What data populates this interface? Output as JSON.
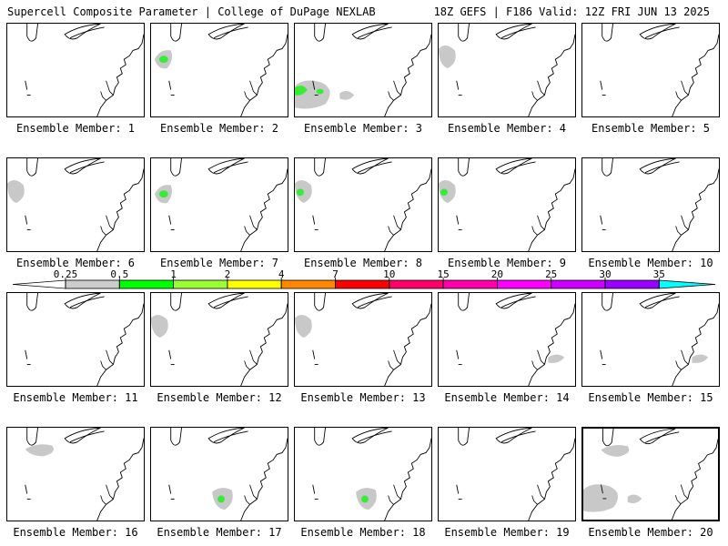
{
  "header": {
    "left": "Supercell Composite Parameter | College of DuPage NEXLAB",
    "right": "18Z GEFS | F186 Valid: 12Z FRI JUN 13 2025"
  },
  "panel_prefix": "Ensemble Member: ",
  "selected_member": 20,
  "members": [
    {
      "label": "Ensemble Member: 1",
      "shading": []
    },
    {
      "label": "Ensemble Member: 2",
      "shading": [
        "gray-north",
        "green-north"
      ]
    },
    {
      "label": "Ensemble Member: 3",
      "shading": [
        "gray-southwest",
        "green-southwest"
      ]
    },
    {
      "label": "Ensemble Member: 4",
      "shading": [
        "gray-west"
      ]
    },
    {
      "label": "Ensemble Member: 5",
      "shading": []
    },
    {
      "label": "Ensemble Member: 6",
      "shading": [
        "gray-west"
      ]
    },
    {
      "label": "Ensemble Member: 7",
      "shading": [
        "gray-north",
        "green-north"
      ]
    },
    {
      "label": "Ensemble Member: 8",
      "shading": [
        "gray-west",
        "green-west"
      ]
    },
    {
      "label": "Ensemble Member: 9",
      "shading": [
        "gray-west",
        "green-west"
      ]
    },
    {
      "label": "Ensemble Member: 10",
      "shading": []
    },
    {
      "label": "Ensemble Member: 11",
      "shading": []
    },
    {
      "label": "Ensemble Member: 12",
      "shading": [
        "gray-west"
      ]
    },
    {
      "label": "Ensemble Member: 13",
      "shading": [
        "gray-west"
      ]
    },
    {
      "label": "Ensemble Member: 14",
      "shading": [
        "gray-southeast"
      ]
    },
    {
      "label": "Ensemble Member: 15",
      "shading": [
        "gray-southeast"
      ]
    },
    {
      "label": "Ensemble Member: 16",
      "shading": [
        "gray-northwest"
      ]
    },
    {
      "label": "Ensemble Member: 17",
      "shading": [
        "gray-south",
        "green-south"
      ]
    },
    {
      "label": "Ensemble Member: 18",
      "shading": [
        "gray-south",
        "green-south"
      ]
    },
    {
      "label": "Ensemble Member: 19",
      "shading": []
    },
    {
      "label": "Ensemble Member: 20",
      "shading": [
        "gray-northwest",
        "gray-southwest"
      ]
    }
  ],
  "colorbar": {
    "labels": [
      "0.25",
      "0.5",
      "1",
      "2",
      "4",
      "7",
      "10",
      "15",
      "20",
      "25",
      "30",
      "35"
    ],
    "colors": [
      "#cccccc",
      "#00ff00",
      "#99ff33",
      "#ffff00",
      "#ff8800",
      "#ff0000",
      "#ff0066",
      "#ff00aa",
      "#ff00ff",
      "#cc00ff",
      "#9900ff",
      "#cc66ff",
      "#00ffff"
    ]
  },
  "colors": {
    "shade_gray": "#c8c8c8",
    "shade_green": "#33ee33",
    "coast": "#000000"
  }
}
